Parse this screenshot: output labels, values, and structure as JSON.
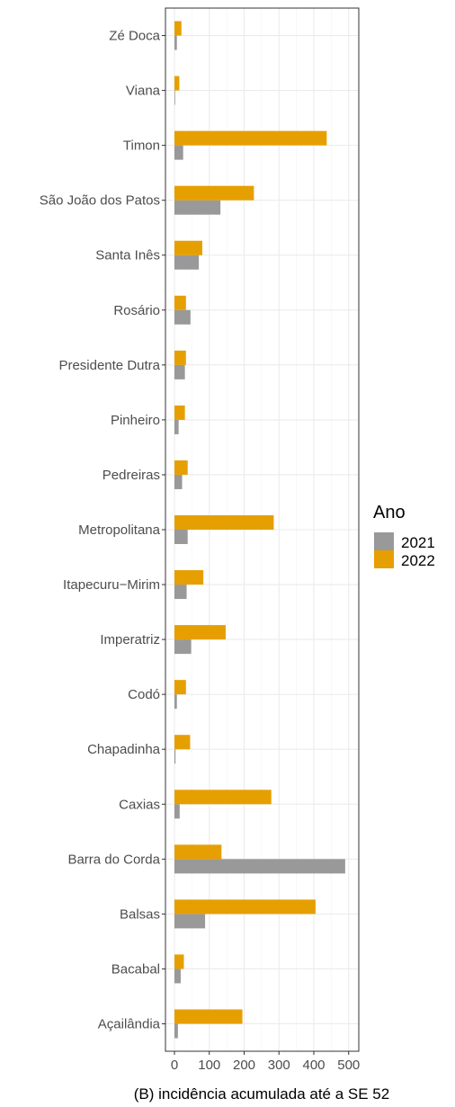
{
  "chart_data": {
    "type": "bar",
    "orientation": "horizontal",
    "categories": [
      "Açailândia",
      "Bacabal",
      "Balsas",
      "Barra do Corda",
      "Caxias",
      "Chapadinha",
      "Codó",
      "Imperatriz",
      "Itapecuru−Mirim",
      "Metropolitana",
      "Pedreiras",
      "Pinheiro",
      "Presidente Dutra",
      "Rosário",
      "Santa Inês",
      "São João dos Patos",
      "Timon",
      "Viana",
      "Zé Doca"
    ],
    "series": [
      {
        "name": "2021",
        "color": "#999999",
        "values": [
          10,
          18,
          88,
          490,
          15,
          3,
          7,
          48,
          35,
          38,
          22,
          12,
          30,
          46,
          70,
          132,
          25,
          2,
          7
        ]
      },
      {
        "name": "2022",
        "color": "#E69F00",
        "values": [
          195,
          27,
          405,
          135,
          278,
          45,
          33,
          147,
          83,
          285,
          38,
          30,
          33,
          33,
          80,
          228,
          437,
          14,
          20
        ]
      }
    ],
    "xlabel": "(B) incidência acumulada até a SE 52",
    "ylabel": "",
    "xlim": [
      -25,
      515
    ],
    "xticks": [
      0,
      100,
      200,
      300,
      400,
      500
    ],
    "xtick_labels": [
      "0",
      "100",
      "200",
      "300",
      "400",
      "500"
    ],
    "legend": {
      "title": "Ano",
      "position": "right",
      "labels": [
        "2021",
        "2022"
      ]
    },
    "grid": true,
    "theme": "bw"
  }
}
